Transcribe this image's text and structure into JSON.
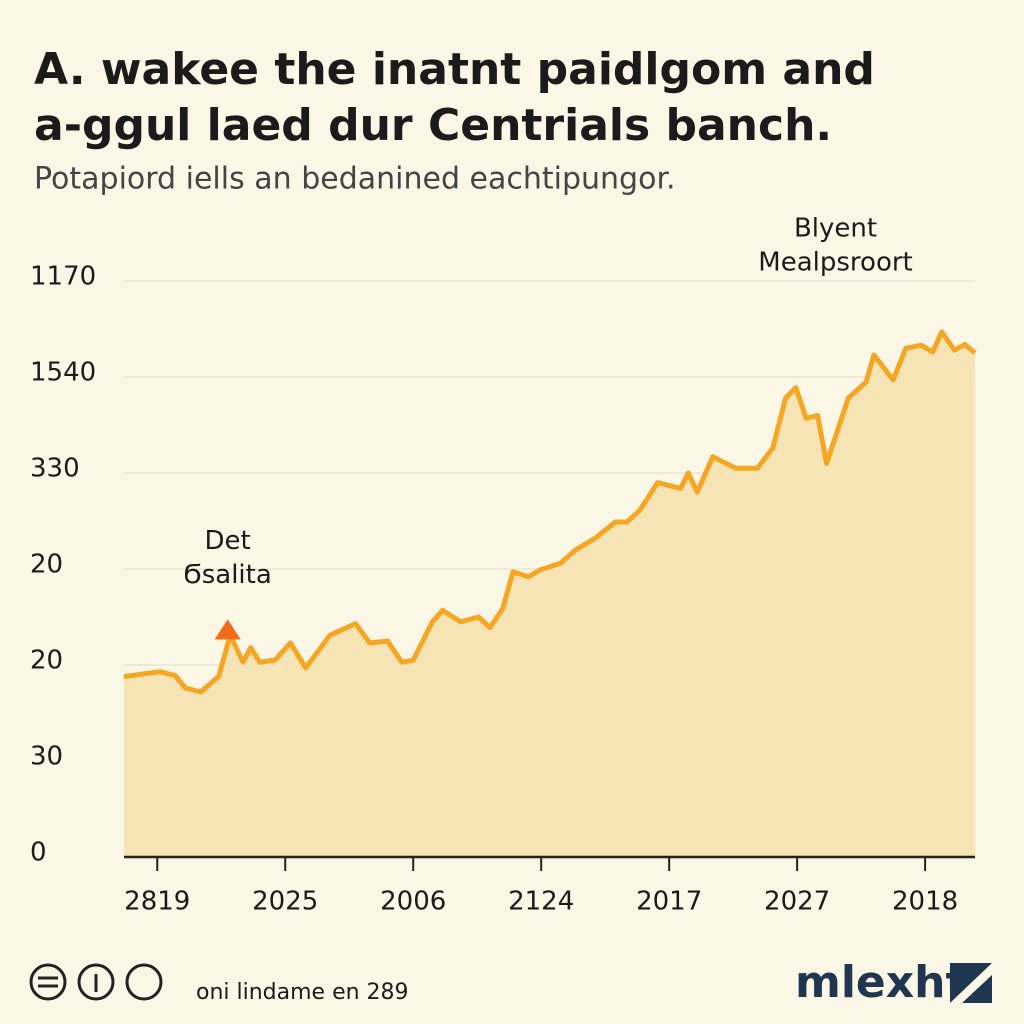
{
  "chart_data": {
    "type": "area",
    "title": [
      "A. wakee the inatnt paidlgom and",
      "a-ggul laed dur Centrials banch."
    ],
    "subtitle": "Potapiord iells an bedanined eachtipungor.",
    "color": "#f5a623",
    "fill_color": "#f6e4b4",
    "grid": true,
    "xlim": [
      -0.26,
      6.39
    ],
    "xticks": [
      {
        "value": 0,
        "label": "2819"
      },
      {
        "value": 1,
        "label": "2025"
      },
      {
        "value": 2,
        "label": "2006"
      },
      {
        "value": 3,
        "label": "2124"
      },
      {
        "value": 4,
        "label": "2017"
      },
      {
        "value": 5,
        "label": "2027"
      },
      {
        "value": 6,
        "label": "2018"
      }
    ],
    "ylim": [
      0,
      6
    ],
    "yticks": [
      {
        "value": 0,
        "label": "0"
      },
      {
        "value": 1,
        "label": "30"
      },
      {
        "value": 2,
        "label": "20"
      },
      {
        "value": 3,
        "label": "20"
      },
      {
        "value": 4,
        "label": "330"
      },
      {
        "value": 5,
        "label": "1540"
      },
      {
        "value": 6,
        "label": "1170"
      }
    ],
    "x": [
      -0.26,
      0.02,
      0.14,
      0.22,
      0.34,
      0.48,
      0.57,
      0.67,
      0.73,
      0.8,
      0.92,
      1.04,
      1.16,
      1.35,
      1.55,
      1.66,
      1.8,
      1.91,
      2.0,
      2.15,
      2.23,
      2.37,
      2.51,
      2.6,
      2.7,
      2.78,
      2.9,
      2.99,
      3.15,
      3.27,
      3.42,
      3.58,
      3.67,
      3.77,
      3.91,
      4.09,
      4.15,
      4.22,
      4.34,
      4.52,
      4.69,
      4.81,
      4.91,
      4.99,
      5.07,
      5.16,
      5.23,
      5.4,
      5.54,
      5.6,
      5.75,
      5.85,
      5.97,
      6.06,
      6.13,
      6.23,
      6.31,
      6.39
    ],
    "values": [
      1.88,
      1.93,
      1.89,
      1.76,
      1.72,
      1.88,
      2.31,
      2.03,
      2.18,
      2.03,
      2.05,
      2.23,
      1.97,
      2.31,
      2.43,
      2.23,
      2.25,
      2.03,
      2.05,
      2.45,
      2.57,
      2.45,
      2.5,
      2.39,
      2.59,
      2.97,
      2.92,
      2.99,
      3.06,
      3.2,
      3.32,
      3.49,
      3.49,
      3.61,
      3.9,
      3.84,
      4.0,
      3.8,
      4.17,
      4.05,
      4.05,
      4.26,
      4.78,
      4.89,
      4.57,
      4.6,
      4.1,
      4.78,
      4.95,
      5.23,
      4.97,
      5.3,
      5.33,
      5.26,
      5.47,
      5.28,
      5.34,
      5.25
    ],
    "annotations": [
      {
        "lines": [
          "Det",
          "Ϭsalita"
        ],
        "x": 0.55,
        "y": 2.35
      },
      {
        "lines": [
          "Blyent",
          "Mealpsroort"
        ],
        "x": 5.3,
        "y": 5.5
      }
    ],
    "footer": "oni lindame en 289",
    "logo": "mlexhtt"
  }
}
